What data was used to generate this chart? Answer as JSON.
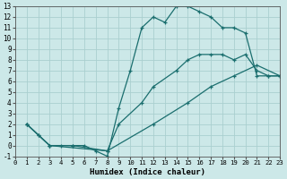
{
  "xlabel": "Humidex (Indice chaleur)",
  "background_color": "#cce8e8",
  "grid_color": "#aacfcf",
  "line_color": "#1a6e6e",
  "xlim": [
    0,
    23
  ],
  "ylim": [
    -1,
    13
  ],
  "xticks": [
    0,
    1,
    2,
    3,
    4,
    5,
    6,
    7,
    8,
    9,
    10,
    11,
    12,
    13,
    14,
    15,
    16,
    17,
    18,
    19,
    20,
    21,
    22,
    23
  ],
  "yticks": [
    -1,
    0,
    1,
    2,
    3,
    4,
    5,
    6,
    7,
    8,
    9,
    10,
    11,
    12,
    13
  ],
  "line1_x": [
    1,
    2,
    3,
    4,
    5,
    6,
    7,
    8,
    9,
    10,
    11,
    12,
    13,
    14,
    15,
    16,
    17,
    18,
    19,
    20,
    21,
    22,
    23
  ],
  "line1_y": [
    2,
    1,
    0,
    0,
    0,
    0,
    -0.5,
    -1,
    3.5,
    7,
    11,
    12,
    11.5,
    13,
    13,
    12.5,
    12,
    11,
    11,
    10.5,
    6.5,
    6.5,
    6.5
  ],
  "line2_x": [
    1,
    2,
    3,
    5,
    8,
    9,
    11,
    12,
    14,
    15,
    16,
    17,
    18,
    19,
    20,
    21,
    22,
    23
  ],
  "line2_y": [
    2,
    1,
    0,
    0,
    -0.5,
    2,
    4,
    5.5,
    7,
    8,
    8.5,
    8.5,
    8.5,
    8,
    8.5,
    7,
    6.5,
    6.5
  ],
  "line3_x": [
    1,
    3,
    8,
    12,
    15,
    17,
    19,
    21,
    23
  ],
  "line3_y": [
    2,
    0,
    -0.5,
    2,
    4,
    5.5,
    6.5,
    7.5,
    6.5
  ]
}
